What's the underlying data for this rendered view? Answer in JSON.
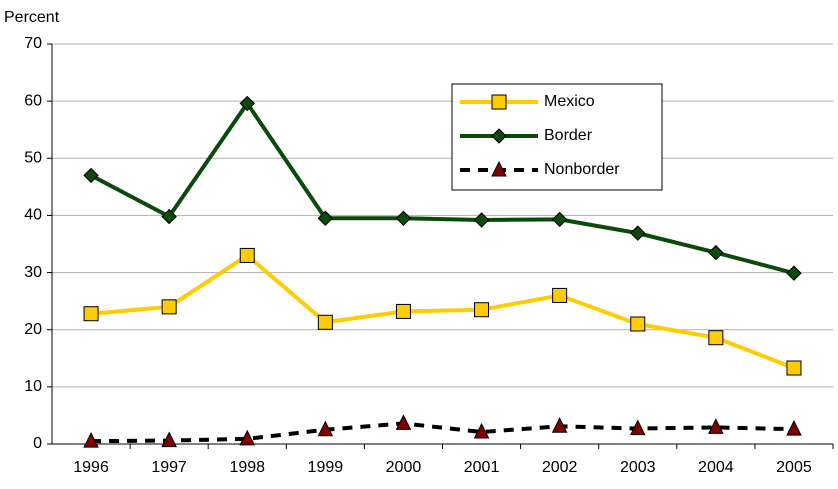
{
  "chart_data": {
    "type": "line",
    "y_label": "Percent",
    "categories": [
      "1996",
      "1997",
      "1998",
      "1999",
      "2000",
      "2001",
      "2002",
      "2003",
      "2004",
      "2005"
    ],
    "series": [
      {
        "name": "Mexico",
        "color": "#ffcc00",
        "marker": "square",
        "marker_color": "#ffcc00",
        "dash": false,
        "values": [
          22.8,
          24.0,
          33.0,
          21.3,
          23.2,
          23.5,
          26.0,
          21.0,
          18.6,
          13.3
        ]
      },
      {
        "name": "Border",
        "color": "#0b4a0b",
        "marker": "diamond",
        "marker_color": "#0b4a0b",
        "dash": false,
        "values": [
          47.0,
          39.8,
          59.6,
          39.5,
          39.5,
          39.2,
          39.3,
          36.9,
          33.5,
          29.9
        ]
      },
      {
        "name": "Nonborder",
        "color": "#000000",
        "marker": "triangle",
        "marker_color": "#800000",
        "dash": true,
        "values": [
          0.5,
          0.6,
          0.9,
          2.5,
          3.6,
          2.1,
          3.1,
          2.7,
          2.9,
          2.6
        ]
      }
    ],
    "ylim": [
      0,
      70
    ],
    "yticks": [
      0,
      10,
      20,
      30,
      40,
      50,
      60,
      70
    ],
    "grid": true,
    "legend": "upper-right"
  }
}
